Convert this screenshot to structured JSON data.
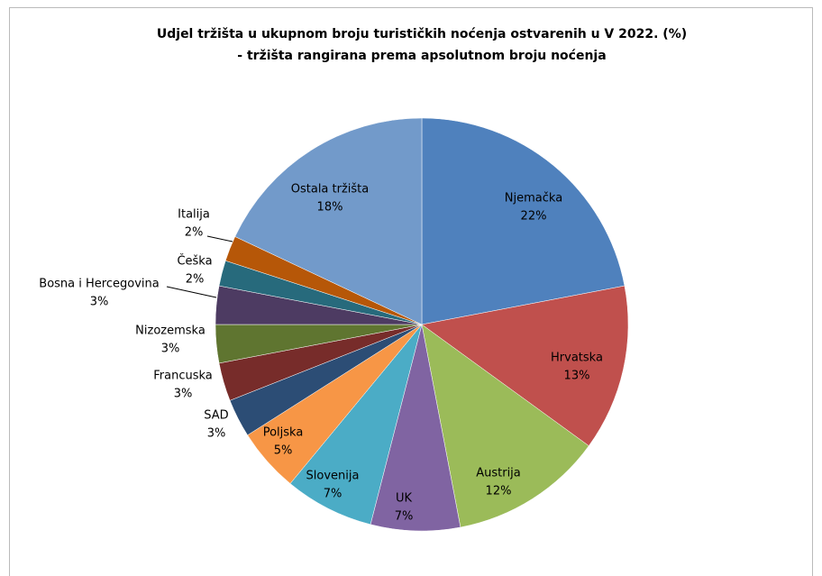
{
  "chart_data": {
    "type": "pie",
    "title": "Udjel tržišta u ukupnom broju turističkih noćenja ostvarenih u V 2022. (%)",
    "subtitle": "- tržišta rangirana prema apsolutnom broju noćenja",
    "categories": [
      "Njemačka",
      "Hrvatska",
      "Austrija",
      "UK",
      "Slovenija",
      "Poljska",
      "SAD",
      "Francuska",
      "Nizozemska",
      "Bosna i Hercegovina",
      "Češka",
      "Italija",
      "Ostala tržišta"
    ],
    "values": [
      22,
      13,
      12,
      7,
      7,
      5,
      3,
      3,
      3,
      3,
      2,
      2,
      18
    ],
    "value_labels": [
      "22%",
      "13%",
      "12%",
      "7%",
      "7%",
      "5%",
      "3%",
      "3%",
      "3%",
      "3%",
      "2%",
      "2%",
      "18%"
    ],
    "colors": [
      "#4f81bd",
      "#c0504d",
      "#9bbb59",
      "#8064a2",
      "#4bacc6",
      "#f79646",
      "#2c4d75",
      "#772c2a",
      "#5f7530",
      "#4d3b62",
      "#276a7c",
      "#b65708",
      "#729aca"
    ]
  }
}
